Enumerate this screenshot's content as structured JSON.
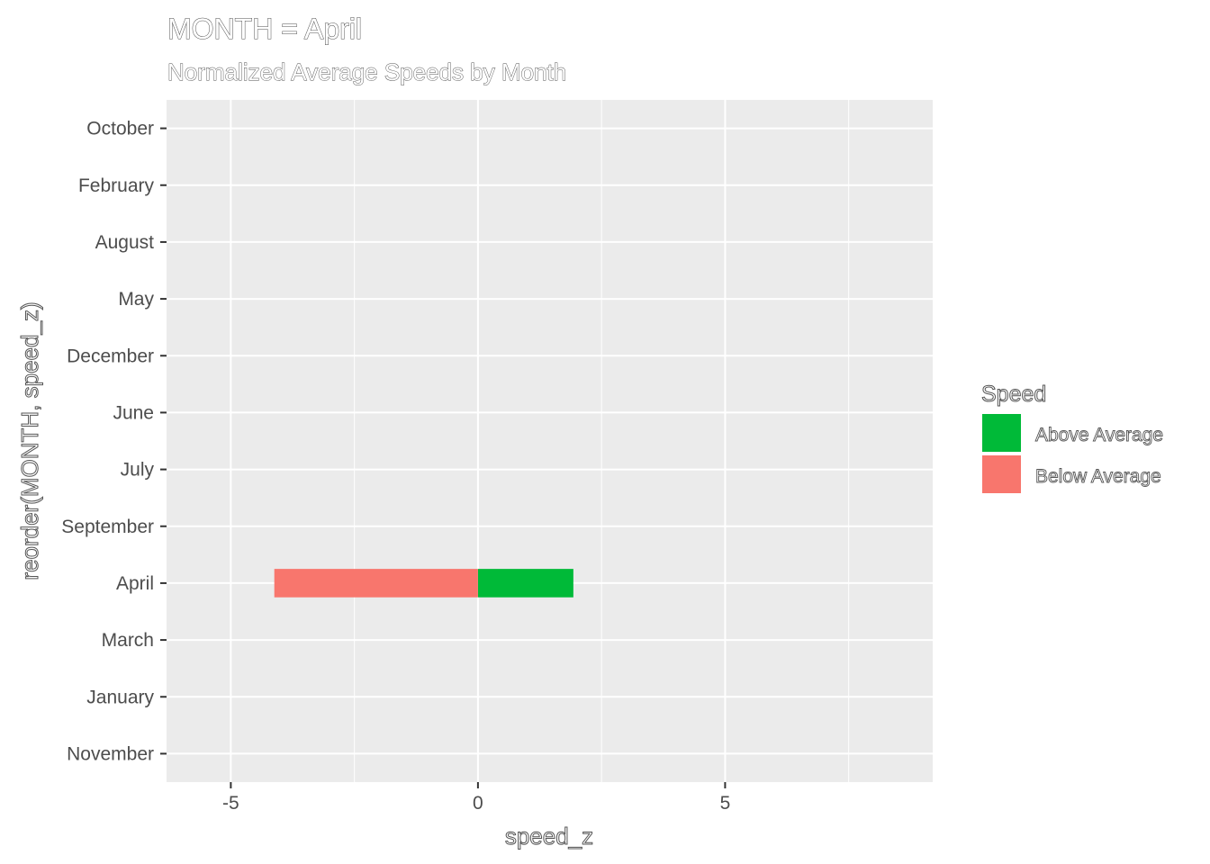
{
  "chart_data": {
    "type": "bar",
    "orientation": "horizontal",
    "title": "MONTH = April",
    "subtitle": "Normalized Average Speeds by Month",
    "xlabel": "speed_z",
    "ylabel": "reorder(MONTH, speed_z)",
    "xlim": [
      -6.3,
      9.2
    ],
    "x_ticks": [
      -5,
      0,
      5
    ],
    "x_tick_labels": [
      "-5",
      "0",
      "5"
    ],
    "categories": [
      "October",
      "February",
      "August",
      "May",
      "December",
      "June",
      "July",
      "September",
      "April",
      "March",
      "January",
      "November"
    ],
    "series": [
      {
        "name": "Above Average",
        "color": "#00BA38",
        "values": [
          null,
          null,
          null,
          null,
          null,
          null,
          null,
          null,
          1.93,
          null,
          null,
          null
        ]
      },
      {
        "name": "Below Average",
        "color": "#F8766D",
        "values": [
          null,
          null,
          null,
          null,
          null,
          null,
          null,
          null,
          -4.12,
          null,
          null,
          null
        ]
      }
    ],
    "legend": {
      "title": "Speed",
      "position": "right",
      "entries": [
        {
          "label": "Above Average",
          "color": "#00BA38"
        },
        {
          "label": "Below Average",
          "color": "#F8766D"
        }
      ]
    },
    "grid": true,
    "panel_background": "#EBEBEB"
  }
}
